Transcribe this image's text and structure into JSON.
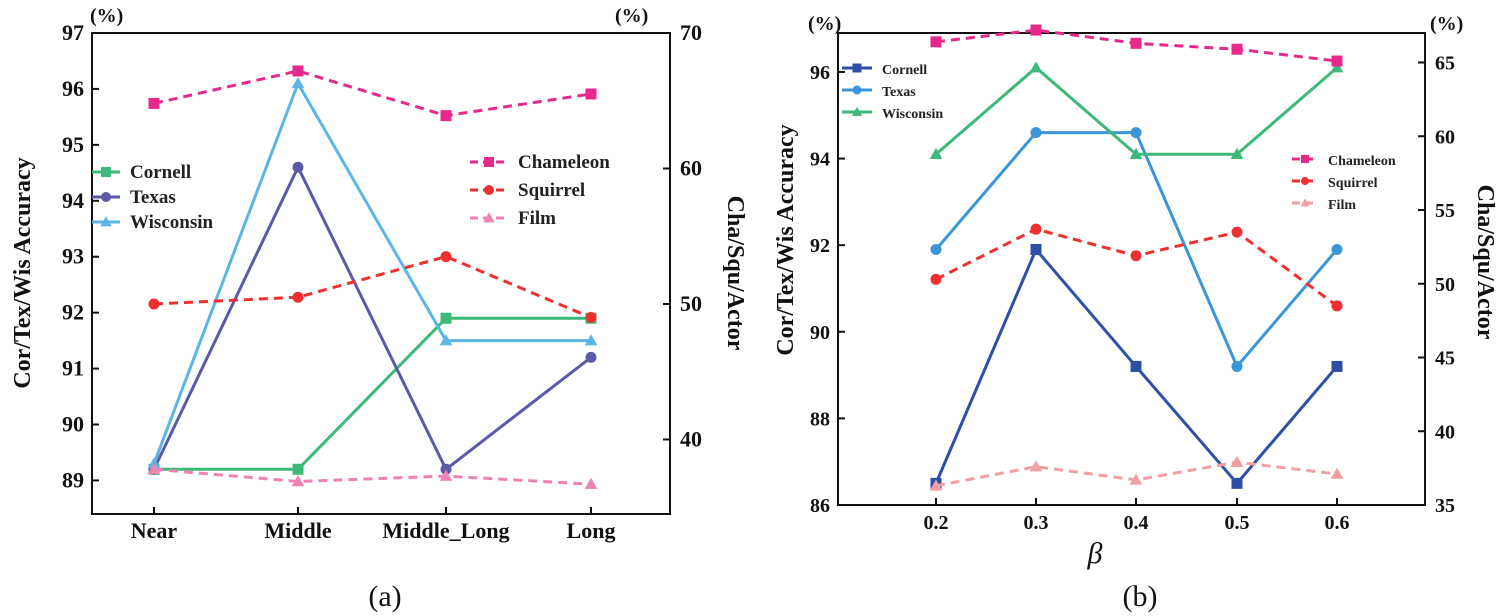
{
  "chart_data": [
    {
      "type": "line",
      "caption": "(a)",
      "categories": [
        "Near",
        "Middle",
        "Middle_Long",
        "Long"
      ],
      "ylabel_left": "Cor/Tex/Wis   Accuracy",
      "ylabel_right": "Cha/Squ/Actor",
      "unit_left": "(%)",
      "unit_right": "(%)",
      "ylim_left": [
        88.4,
        97
      ],
      "ylim_right": [
        34.5,
        70
      ],
      "yticks_left": [
        89,
        90,
        91,
        92,
        93,
        94,
        95,
        96,
        97
      ],
      "yticks_right": [
        40,
        50,
        60,
        70
      ],
      "series": [
        {
          "name": "Cornell",
          "axis": "left",
          "color": "#3cb878",
          "marker": "square",
          "dash": false,
          "values": [
            89.2,
            89.2,
            91.9,
            91.9
          ]
        },
        {
          "name": "Texas",
          "axis": "left",
          "color": "#5a5aa8",
          "marker": "circle",
          "dash": false,
          "values": [
            89.2,
            94.6,
            89.2,
            91.2
          ]
        },
        {
          "name": "Wisconsin",
          "axis": "left",
          "color": "#5bb6e6",
          "marker": "triangle",
          "dash": false,
          "values": [
            89.3,
            96.1,
            91.5,
            91.5
          ]
        },
        {
          "name": "Chameleon",
          "axis": "right",
          "color": "#e8298c",
          "marker": "square",
          "dash": true,
          "values": [
            64.8,
            67.2,
            63.9,
            65.5
          ]
        },
        {
          "name": "Squirrel",
          "axis": "right",
          "color": "#ee3030",
          "marker": "circle",
          "dash": true,
          "values": [
            50.0,
            50.5,
            53.5,
            49.0
          ]
        },
        {
          "name": "Film",
          "axis": "right",
          "color": "#ee82b4",
          "marker": "triangle",
          "dash": true,
          "values": [
            37.8,
            36.9,
            37.3,
            36.7
          ]
        }
      ],
      "legend_left": [
        "Cornell",
        "Texas",
        "Wisconsin"
      ],
      "legend_right": [
        "Chameleon",
        "Squirrel",
        "Film"
      ]
    },
    {
      "type": "line",
      "caption": "(b)",
      "xlabel": "β",
      "categories": [
        "0.2",
        "0.3",
        "0.4",
        "0.5",
        "0.6"
      ],
      "ylabel_left": "Cor/Tex/Wis   Accuracy",
      "ylabel_right": "Cha/Squ/Actor",
      "unit_left": "(%)",
      "unit_right": "(%)",
      "ylim_left": [
        86,
        96.9
      ],
      "ylim_right": [
        35,
        67
      ],
      "yticks_left": [
        86,
        88,
        90,
        92,
        94,
        96
      ],
      "yticks_right": [
        35,
        40,
        45,
        50,
        55,
        60,
        65
      ],
      "series": [
        {
          "name": "Cornell",
          "axis": "left",
          "color": "#2e4fa6",
          "marker": "square",
          "dash": false,
          "values": [
            86.5,
            91.9,
            89.2,
            86.5,
            89.2
          ]
        },
        {
          "name": "Texas",
          "axis": "left",
          "color": "#3a96d8",
          "marker": "circle",
          "dash": false,
          "values": [
            91.9,
            94.6,
            94.6,
            89.2,
            91.9
          ]
        },
        {
          "name": "Wisconsin",
          "axis": "left",
          "color": "#3cb878",
          "marker": "triangle",
          "dash": false,
          "values": [
            94.1,
            96.1,
            94.1,
            94.1,
            96.1
          ]
        },
        {
          "name": "Chameleon",
          "axis": "right",
          "color": "#e8298c",
          "marker": "square",
          "dash": true,
          "values": [
            66.4,
            67.2,
            66.3,
            65.9,
            65.1
          ]
        },
        {
          "name": "Squirrel",
          "axis": "right",
          "color": "#ee3030",
          "marker": "circle",
          "dash": true,
          "values": [
            50.3,
            53.7,
            51.9,
            53.5,
            48.5
          ]
        },
        {
          "name": "Film",
          "axis": "right",
          "color": "#f0a0a0",
          "marker": "triangle",
          "dash": true,
          "values": [
            36.3,
            37.6,
            36.7,
            37.9,
            37.1
          ]
        }
      ],
      "legend_left": [
        "Cornell",
        "Texas",
        "Wisconsin"
      ],
      "legend_right": [
        "Chameleon",
        "Squirrel",
        "Film"
      ]
    }
  ]
}
